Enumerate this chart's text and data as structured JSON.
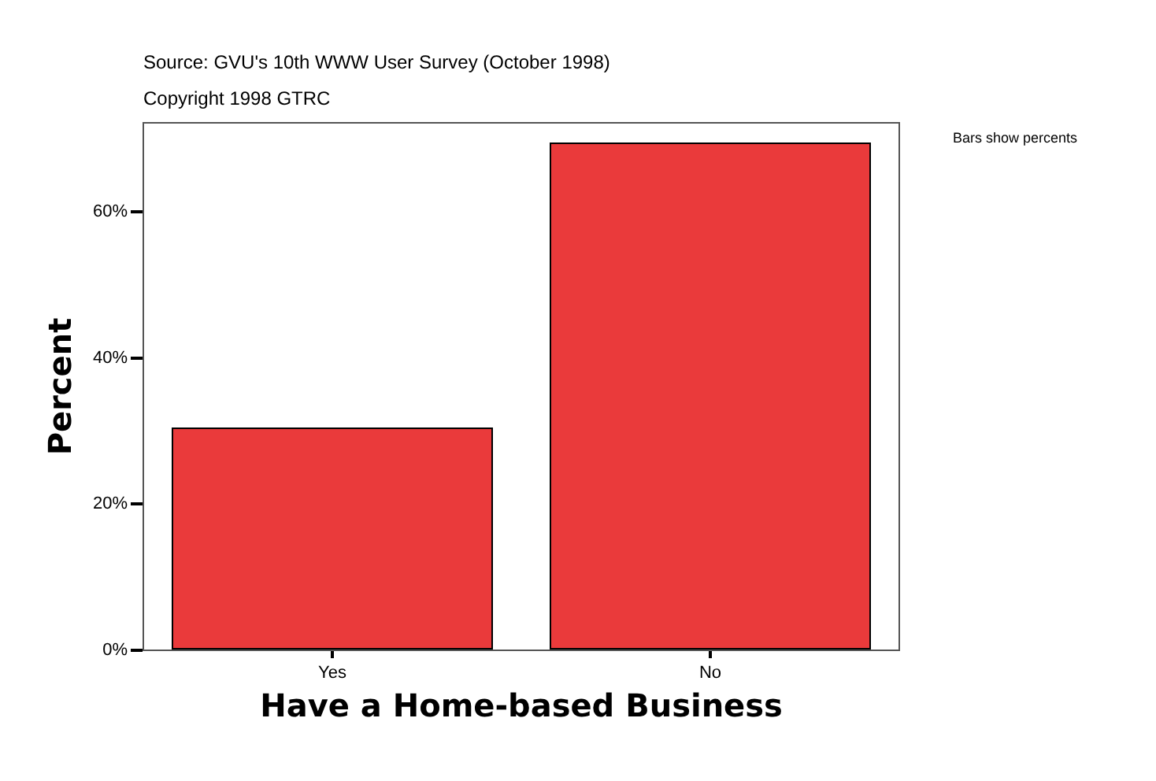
{
  "chart_data": {
    "type": "bar",
    "categories": [
      "Yes",
      "No"
    ],
    "values": [
      30.5,
      69.5
    ],
    "color": "#ea3a3b",
    "xlabel": "Have a Home-based Business",
    "ylabel": "Percent",
    "ylim": [
      0,
      72.2
    ],
    "yticks": [
      {
        "value": 0,
        "label": "0%"
      },
      {
        "value": 20,
        "label": "20%"
      },
      {
        "value": 40,
        "label": "40%"
      },
      {
        "value": 60,
        "label": "60%"
      }
    ],
    "grid": false,
    "legend": false,
    "annotations": [
      "Source: GVU's 10th WWW User Survey (October 1998)",
      "Copyright 1998 GTRC",
      "Bars show percents"
    ]
  }
}
